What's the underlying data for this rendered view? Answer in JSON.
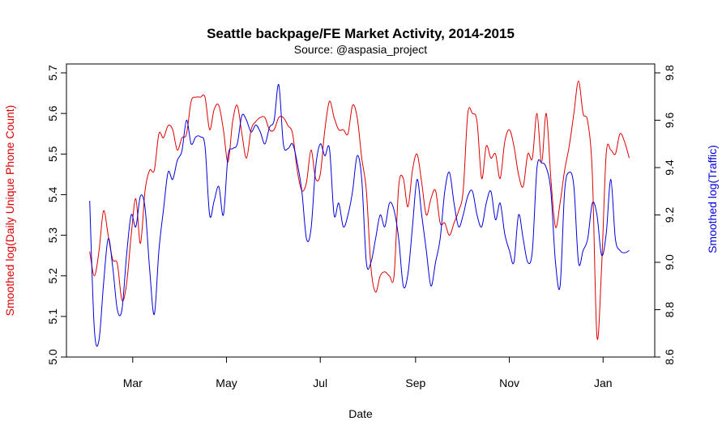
{
  "chart_data": {
    "type": "line",
    "title": "Seattle backpage/FE Market Activity, 2014-2015",
    "subtitle": "Source: @aspasia_project",
    "xlabel": "Date",
    "ylabel_left": "Smoothed log(Daily Unique Phone Count)",
    "ylabel_right": "Smoothed log(Traffic)",
    "x_ticks": [
      "Mar",
      "May",
      "Jul",
      "Sep",
      "Nov",
      "Jan"
    ],
    "x_tick_days": [
      44,
      105,
      166,
      228,
      289,
      350
    ],
    "xlim": [
      13,
      372
    ],
    "ylim_left": [
      5.0,
      5.7
    ],
    "ylim_right": [
      8.6,
      9.8
    ],
    "y_ticks_left": [
      "5.0",
      "5.1",
      "5.2",
      "5.3",
      "5.4",
      "5.5",
      "5.6",
      "5.7"
    ],
    "y_ticks_right": [
      "8.6",
      "8.8",
      "9.0",
      "9.2",
      "9.4",
      "9.6",
      "9.8"
    ],
    "series": [
      {
        "name": "Smoothed log(Daily Unique Phone Count)",
        "axis": "left",
        "color": "#dd0000",
        "x": [
          16,
          19,
          22,
          25,
          28,
          31,
          34,
          37,
          40,
          43,
          46,
          49,
          52,
          55,
          58,
          61,
          64,
          67,
          70,
          73,
          76,
          79,
          82,
          85,
          88,
          91,
          94,
          97,
          100,
          103,
          106,
          109,
          112,
          115,
          118,
          121,
          124,
          127,
          130,
          133,
          136,
          139,
          142,
          145,
          148,
          151,
          154,
          157,
          160,
          163,
          166,
          169,
          172,
          175,
          178,
          181,
          184,
          187,
          190,
          193,
          196,
          199,
          202,
          205,
          208,
          211,
          214,
          217,
          220,
          223,
          226,
          229,
          232,
          235,
          238,
          241,
          244,
          247,
          250,
          253,
          256,
          259,
          262,
          265,
          268,
          271,
          274,
          277,
          280,
          283,
          286,
          289,
          292,
          295,
          298,
          301,
          304,
          307,
          310,
          313,
          316,
          319,
          322,
          325,
          328,
          331,
          334,
          337,
          340,
          343,
          346,
          349,
          352,
          355,
          358,
          361,
          364,
          367
        ],
        "values": [
          5.26,
          5.2,
          5.26,
          5.36,
          5.3,
          5.24,
          5.23,
          5.14,
          5.18,
          5.3,
          5.39,
          5.28,
          5.41,
          5.46,
          5.46,
          5.55,
          5.54,
          5.57,
          5.56,
          5.51,
          5.54,
          5.55,
          5.63,
          5.64,
          5.64,
          5.64,
          5.56,
          5.61,
          5.62,
          5.56,
          5.48,
          5.58,
          5.62,
          5.55,
          5.49,
          5.56,
          5.58,
          5.59,
          5.59,
          5.56,
          5.56,
          5.59,
          5.59,
          5.57,
          5.55,
          5.46,
          5.41,
          5.43,
          5.51,
          5.44,
          5.45,
          5.56,
          5.63,
          5.59,
          5.56,
          5.56,
          5.55,
          5.62,
          5.59,
          5.49,
          5.41,
          5.22,
          5.16,
          5.2,
          5.21,
          5.2,
          5.2,
          5.42,
          5.44,
          5.37,
          5.46,
          5.5,
          5.43,
          5.35,
          5.39,
          5.41,
          5.33,
          5.33,
          5.3,
          5.33,
          5.36,
          5.41,
          5.6,
          5.6,
          5.58,
          5.44,
          5.52,
          5.49,
          5.5,
          5.44,
          5.53,
          5.56,
          5.52,
          5.45,
          5.42,
          5.5,
          5.49,
          5.6,
          5.48,
          5.6,
          5.44,
          5.32,
          5.38,
          5.46,
          5.52,
          5.6,
          5.68,
          5.6,
          5.58,
          5.45,
          5.05,
          5.22,
          5.5,
          5.51,
          5.5,
          5.55,
          5.53,
          5.49
        ]
      },
      {
        "name": "Smoothed log(Traffic)",
        "axis": "right",
        "color": "#0000dd",
        "x": [
          16,
          19,
          22,
          25,
          28,
          31,
          34,
          37,
          40,
          43,
          46,
          49,
          52,
          55,
          58,
          61,
          64,
          67,
          70,
          73,
          76,
          79,
          82,
          85,
          88,
          91,
          94,
          97,
          100,
          103,
          106,
          109,
          112,
          115,
          118,
          121,
          124,
          127,
          130,
          133,
          136,
          139,
          142,
          145,
          148,
          151,
          154,
          157,
          160,
          163,
          166,
          169,
          172,
          175,
          178,
          181,
          184,
          187,
          190,
          193,
          196,
          199,
          202,
          205,
          208,
          211,
          214,
          217,
          220,
          223,
          226,
          229,
          232,
          235,
          238,
          241,
          244,
          247,
          250,
          253,
          256,
          259,
          262,
          265,
          268,
          271,
          274,
          277,
          280,
          283,
          286,
          289,
          292,
          295,
          298,
          301,
          304,
          307,
          310,
          313,
          316,
          319,
          322,
          325,
          328,
          331,
          334,
          337,
          340,
          343,
          346,
          349,
          352,
          355,
          358,
          361,
          364,
          367
        ],
        "values": [
          9.26,
          8.72,
          8.67,
          8.91,
          9.1,
          8.98,
          8.8,
          8.8,
          9.03,
          9.2,
          9.15,
          9.28,
          9.23,
          8.97,
          8.78,
          9.05,
          9.22,
          9.38,
          9.35,
          9.43,
          9.47,
          9.6,
          9.5,
          9.53,
          9.53,
          9.49,
          9.2,
          9.26,
          9.32,
          9.2,
          9.45,
          9.48,
          9.5,
          9.62,
          9.6,
          9.55,
          9.58,
          9.55,
          9.5,
          9.57,
          9.6,
          9.75,
          9.5,
          9.48,
          9.5,
          9.42,
          9.3,
          9.1,
          9.14,
          9.4,
          9.5,
          9.45,
          9.48,
          9.2,
          9.25,
          9.15,
          9.2,
          9.3,
          9.45,
          9.35,
          9.0,
          9.0,
          9.1,
          9.2,
          9.15,
          9.25,
          9.22,
          9.1,
          8.9,
          8.95,
          9.15,
          9.35,
          9.2,
          9.05,
          8.9,
          9.0,
          9.1,
          9.3,
          9.38,
          9.25,
          9.15,
          9.2,
          9.28,
          9.3,
          9.2,
          9.15,
          9.25,
          9.3,
          9.18,
          9.25,
          9.12,
          9.05,
          9.0,
          9.2,
          9.1,
          9.0,
          9.05,
          9.4,
          9.42,
          9.4,
          9.3,
          9.0,
          8.9,
          9.3,
          9.38,
          9.32,
          9.0,
          9.05,
          9.1,
          9.25,
          9.2,
          9.03,
          9.12,
          9.35,
          9.1,
          9.05,
          9.04,
          9.05
        ]
      }
    ]
  }
}
